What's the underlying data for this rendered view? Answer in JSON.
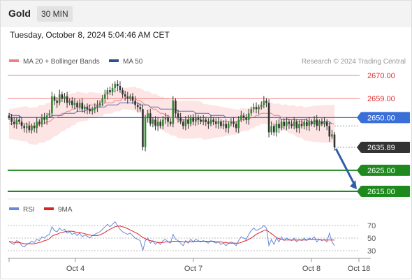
{
  "header": {
    "title": "Gold",
    "timeframe": "30 MIN"
  },
  "datetime": "Tuesday, October 8, 2024 5:04:46 AM CET",
  "legend": [
    {
      "label": "MA 20 + Bollinger Bands",
      "color": "#f08080"
    },
    {
      "label": "MA 50",
      "color": "#2c4f8f"
    }
  ],
  "watermark": "Research © 2024 Trading Central",
  "rsi_legend": [
    {
      "label": "RSI",
      "color": "#6688dd"
    },
    {
      "label": "9MA",
      "color": "#dd2222"
    }
  ],
  "chart_data": [
    {
      "type": "candlestick",
      "title": "Gold",
      "levels": [
        {
          "value": 2670.0,
          "label": "2670.00",
          "kind": "resistance",
          "color": "#f08080"
        },
        {
          "value": 2659.0,
          "label": "2659.00",
          "kind": "resistance",
          "color": "#f08080"
        },
        {
          "value": 2650.0,
          "label": "2650.00",
          "kind": "pivot",
          "color": "#3a6fd8"
        },
        {
          "value": 2635.89,
          "label": "2635.89",
          "kind": "last",
          "color": "#333333"
        },
        {
          "value": 2625.0,
          "label": "2625.00",
          "kind": "support",
          "color": "#1e8a1e"
        },
        {
          "value": 2615.0,
          "label": "2615.00",
          "kind": "support",
          "color": "#1e8a1e"
        }
      ],
      "ylim": [
        2612,
        2677
      ],
      "x_ticks": [
        "Oct 4",
        "Oct 7",
        "Oct 8",
        "Oct 18"
      ],
      "prices": [
        2650,
        2648,
        2647,
        2649,
        2648,
        2646,
        2645,
        2646,
        2644,
        2646,
        2645,
        2648,
        2647,
        2650,
        2649,
        2651,
        2652,
        2660,
        2658,
        2657,
        2661,
        2659,
        2660,
        2657,
        2658,
        2656,
        2657,
        2655,
        2657,
        2654,
        2655,
        2654,
        2653,
        2654,
        2655,
        2656,
        2657,
        2659,
        2661,
        2663,
        2662,
        2664,
        2666,
        2665,
        2663,
        2661,
        2660,
        2659,
        2660,
        2658,
        2656,
        2655,
        2654,
        2636,
        2650,
        2652,
        2647,
        2649,
        2646,
        2648,
        2646,
        2649,
        2650,
        2648,
        2647,
        2658,
        2652,
        2650,
        2648,
        2646,
        2649,
        2647,
        2650,
        2648,
        2650,
        2649,
        2648,
        2649,
        2648,
        2647,
        2649,
        2648,
        2647,
        2648,
        2646,
        2647,
        2645,
        2647,
        2648,
        2647,
        2645,
        2649,
        2651,
        2650,
        2649,
        2652,
        2654,
        2655,
        2654,
        2655,
        2656,
        2658,
        2657,
        2643,
        2646,
        2643,
        2647,
        2645,
        2648,
        2646,
        2648,
        2647,
        2646,
        2648,
        2645,
        2647,
        2646,
        2648,
        2646,
        2648,
        2647,
        2649,
        2646,
        2648,
        2647,
        2648,
        2646,
        2641,
        2642,
        2635.89
      ],
      "ma20": [
        2647,
        2647,
        2647,
        2647,
        2647,
        2647,
        2647,
        2647,
        2646,
        2646,
        2646,
        2646,
        2647,
        2647,
        2647,
        2648,
        2648,
        2649,
        2650,
        2650,
        2651,
        2652,
        2652,
        2653,
        2653,
        2654,
        2654,
        2655,
        2655,
        2655,
        2655,
        2655,
        2656,
        2656,
        2656,
        2656,
        2656,
        2656,
        2657,
        2657,
        2657,
        2657,
        2658,
        2658,
        2658,
        2659,
        2659,
        2659,
        2659,
        2659,
        2659,
        2658,
        2658,
        2657,
        2656,
        2656,
        2655,
        2654,
        2654,
        2653,
        2652,
        2652,
        2651,
        2651,
        2650,
        2650,
        2650,
        2649,
        2649,
        2649,
        2649,
        2649,
        2649,
        2649,
        2649,
        2649,
        2649,
        2648,
        2648,
        2648,
        2648,
        2648,
        2648,
        2648,
        2648,
        2648,
        2648,
        2648,
        2648,
        2648,
        2648,
        2648,
        2649,
        2649,
        2649,
        2649,
        2650,
        2650,
        2651,
        2651,
        2652,
        2652,
        2652,
        2652,
        2652,
        2651,
        2651,
        2651,
        2650,
        2650,
        2650,
        2649,
        2649,
        2649,
        2648,
        2648,
        2648,
        2647,
        2647,
        2647,
        2647,
        2647,
        2647,
        2647,
        2647,
        2647,
        2647,
        2647,
        2647,
        2647
      ],
      "ma50": [
        2652,
        2651,
        2651,
        2651,
        2651,
        2650,
        2650,
        2650,
        2650,
        2650,
        2650,
        2650,
        2650,
        2650,
        2650,
        2650,
        2650,
        2651,
        2651,
        2651,
        2651,
        2651,
        2652,
        2652,
        2652,
        2652,
        2652,
        2653,
        2653,
        2653,
        2653,
        2654,
        2654,
        2654,
        2654,
        2655,
        2655,
        2655,
        2655,
        2656,
        2656,
        2656,
        2656,
        2656,
        2657,
        2657,
        2657,
        2657,
        2657,
        2657,
        2657,
        2657,
        2656,
        2656,
        2656,
        2656,
        2655,
        2655,
        2655,
        2655,
        2654,
        2654,
        2654,
        2654,
        2654,
        2654,
        2654,
        2653,
        2653,
        2653,
        2653,
        2653,
        2653,
        2653,
        2652,
        2652,
        2652,
        2652,
        2652,
        2652,
        2651,
        2651,
        2651,
        2651,
        2651,
        2651,
        2650,
        2650,
        2650,
        2650,
        2650,
        2650,
        2650,
        2650,
        2650,
        2650,
        2650,
        2650,
        2650,
        2650,
        2650,
        2650,
        2650,
        2650,
        2650,
        2650,
        2650,
        2650,
        2649,
        2649,
        2649,
        2649,
        2649,
        2649,
        2649,
        2649,
        2649,
        2649,
        2649,
        2648,
        2648,
        2648,
        2648,
        2648,
        2648,
        2648,
        2648,
        2648,
        2647
      ]
    },
    {
      "type": "line",
      "title": "",
      "series": [
        {
          "name": "RSI"
        },
        {
          "name": "9MA"
        }
      ],
      "y_ticks": [
        70,
        50,
        30
      ],
      "ylim": [
        25,
        78
      ],
      "rsi": [
        45,
        42,
        40,
        46,
        44,
        38,
        36,
        40,
        42,
        45,
        43,
        48,
        46,
        52,
        50,
        54,
        56,
        68,
        62,
        60,
        66,
        62,
        64,
        58,
        60,
        56,
        58,
        54,
        58,
        52,
        55,
        53,
        50,
        54,
        56,
        58,
        60,
        64,
        68,
        72,
        68,
        72,
        76,
        70,
        64,
        60,
        58,
        56,
        58,
        54,
        50,
        48,
        46,
        30,
        46,
        50,
        42,
        46,
        40,
        44,
        40,
        46,
        48,
        44,
        42,
        56,
        48,
        46,
        42,
        38,
        46,
        42,
        48,
        44,
        48,
        46,
        44,
        46,
        44,
        42,
        46,
        44,
        42,
        44,
        40,
        42,
        38,
        42,
        44,
        42,
        38,
        46,
        52,
        50,
        48,
        56,
        62,
        66,
        62,
        64,
        66,
        70,
        66,
        38,
        48,
        40,
        50,
        44,
        52,
        46,
        50,
        48,
        46,
        50,
        44,
        48,
        46,
        50,
        46,
        50,
        48,
        52,
        44,
        48,
        46,
        48,
        44,
        58,
        44,
        38
      ],
      "ma9": [
        44,
        44,
        43,
        43,
        43,
        42,
        41,
        41,
        41,
        41,
        41,
        42,
        43,
        44,
        46,
        47,
        49,
        53,
        55,
        56,
        58,
        59,
        60,
        61,
        61,
        61,
        60,
        59,
        59,
        58,
        57,
        56,
        55,
        54,
        54,
        54,
        55,
        57,
        59,
        62,
        64,
        66,
        68,
        69,
        69,
        68,
        67,
        65,
        63,
        61,
        59,
        57,
        54,
        51,
        49,
        47,
        46,
        45,
        44,
        43,
        43,
        43,
        44,
        44,
        44,
        45,
        45,
        45,
        45,
        44,
        44,
        44,
        44,
        44,
        45,
        45,
        45,
        45,
        45,
        45,
        45,
        45,
        44,
        44,
        44,
        43,
        43,
        42,
        42,
        42,
        42,
        42,
        43,
        45,
        46,
        48,
        50,
        53,
        56,
        58,
        60,
        62,
        63,
        60,
        57,
        54,
        51,
        49,
        48,
        47,
        47,
        47,
        47,
        47,
        47,
        47,
        47,
        47,
        47,
        48,
        48,
        48,
        48,
        48,
        47,
        47,
        47,
        47,
        47,
        47
      ]
    }
  ]
}
